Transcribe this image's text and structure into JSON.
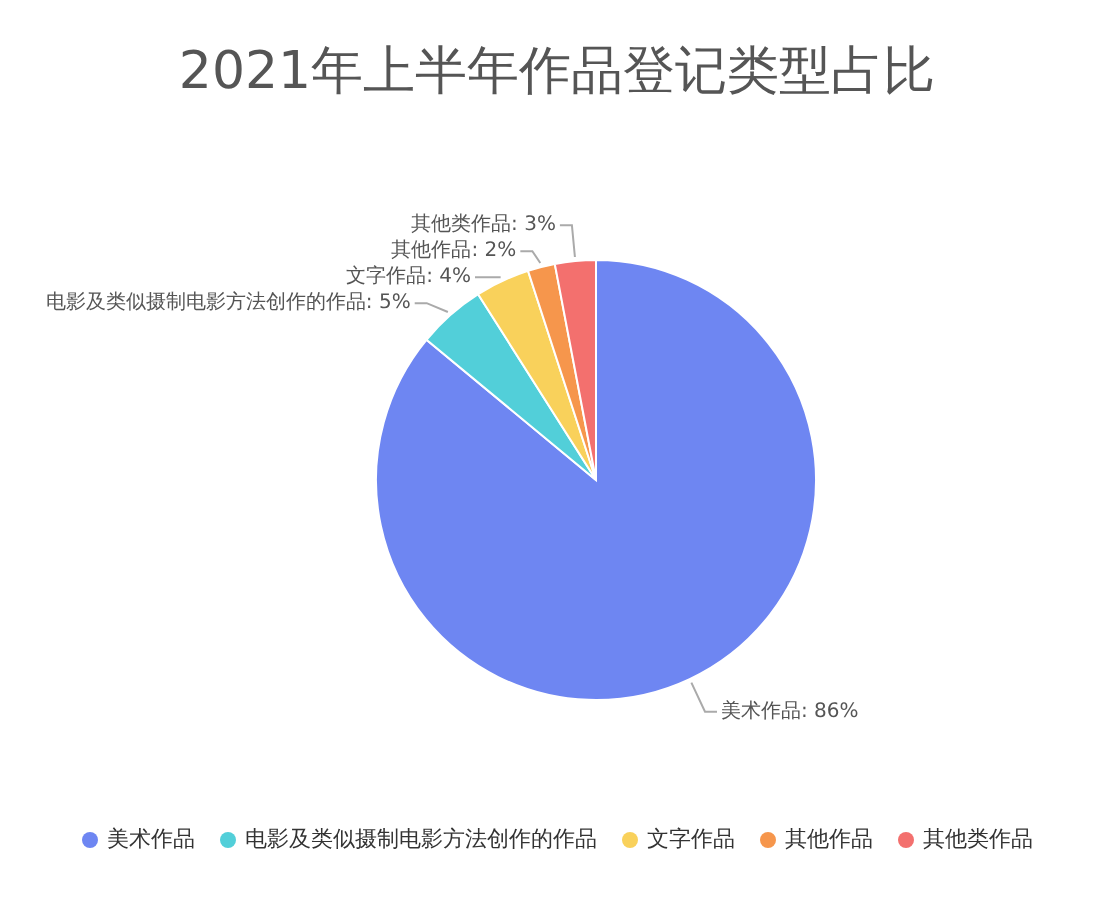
{
  "chart_data": {
    "type": "pie",
    "title": "2021年上半年作品登记类型占比",
    "categories": [
      "美术作品",
      "电影及类似摄制电影方法创作的作品",
      "文字作品",
      "其他作品",
      "其他类作品"
    ],
    "values": [
      86,
      5,
      4,
      2,
      3
    ],
    "value_labels": [
      "美术作品: 86%",
      "电影及类似摄制电影方法创作的作品: 5%",
      "文字作品: 4%",
      "其他作品: 2%",
      "其他类作品: 3%"
    ],
    "colors": [
      "#6e86f2",
      "#52cfd9",
      "#f9d15b",
      "#f6964c",
      "#f3706e"
    ],
    "legend": "bottom"
  }
}
